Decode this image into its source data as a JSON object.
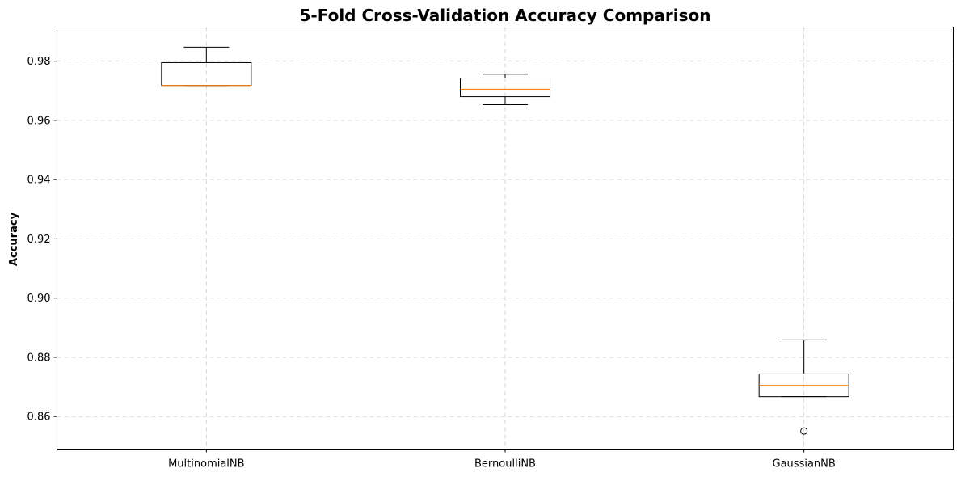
{
  "chart_data": {
    "type": "box",
    "title": "5-Fold Cross-Validation Accuracy Comparison",
    "xlabel": "",
    "ylabel": "Accuracy",
    "ylim": [
      0.849,
      0.9915
    ],
    "yticks": [
      "0.86",
      "0.88",
      "0.90",
      "0.92",
      "0.94",
      "0.96",
      "0.98"
    ],
    "ytick_values": [
      0.86,
      0.88,
      0.9,
      0.92,
      0.94,
      0.96,
      0.98
    ],
    "grid": true,
    "categories": [
      "MultinomialNB",
      "BernoulliNB",
      "GaussianNB"
    ],
    "boxes": [
      {
        "whislo": 0.9718,
        "q1": 0.9718,
        "med": 0.9718,
        "q3": 0.9795,
        "whishi": 0.9847,
        "fliers": []
      },
      {
        "whislo": 0.9653,
        "q1": 0.968,
        "med": 0.9705,
        "q3": 0.9743,
        "whishi": 0.9756,
        "fliers": []
      },
      {
        "whislo": 0.8667,
        "q1": 0.8667,
        "med": 0.8705,
        "q3": 0.8744,
        "whishi": 0.8859,
        "fliers": [
          0.8551
        ]
      }
    ],
    "colors": {
      "box": "#000000",
      "median": "#ff7f0e",
      "grid": "#cccccc"
    }
  }
}
